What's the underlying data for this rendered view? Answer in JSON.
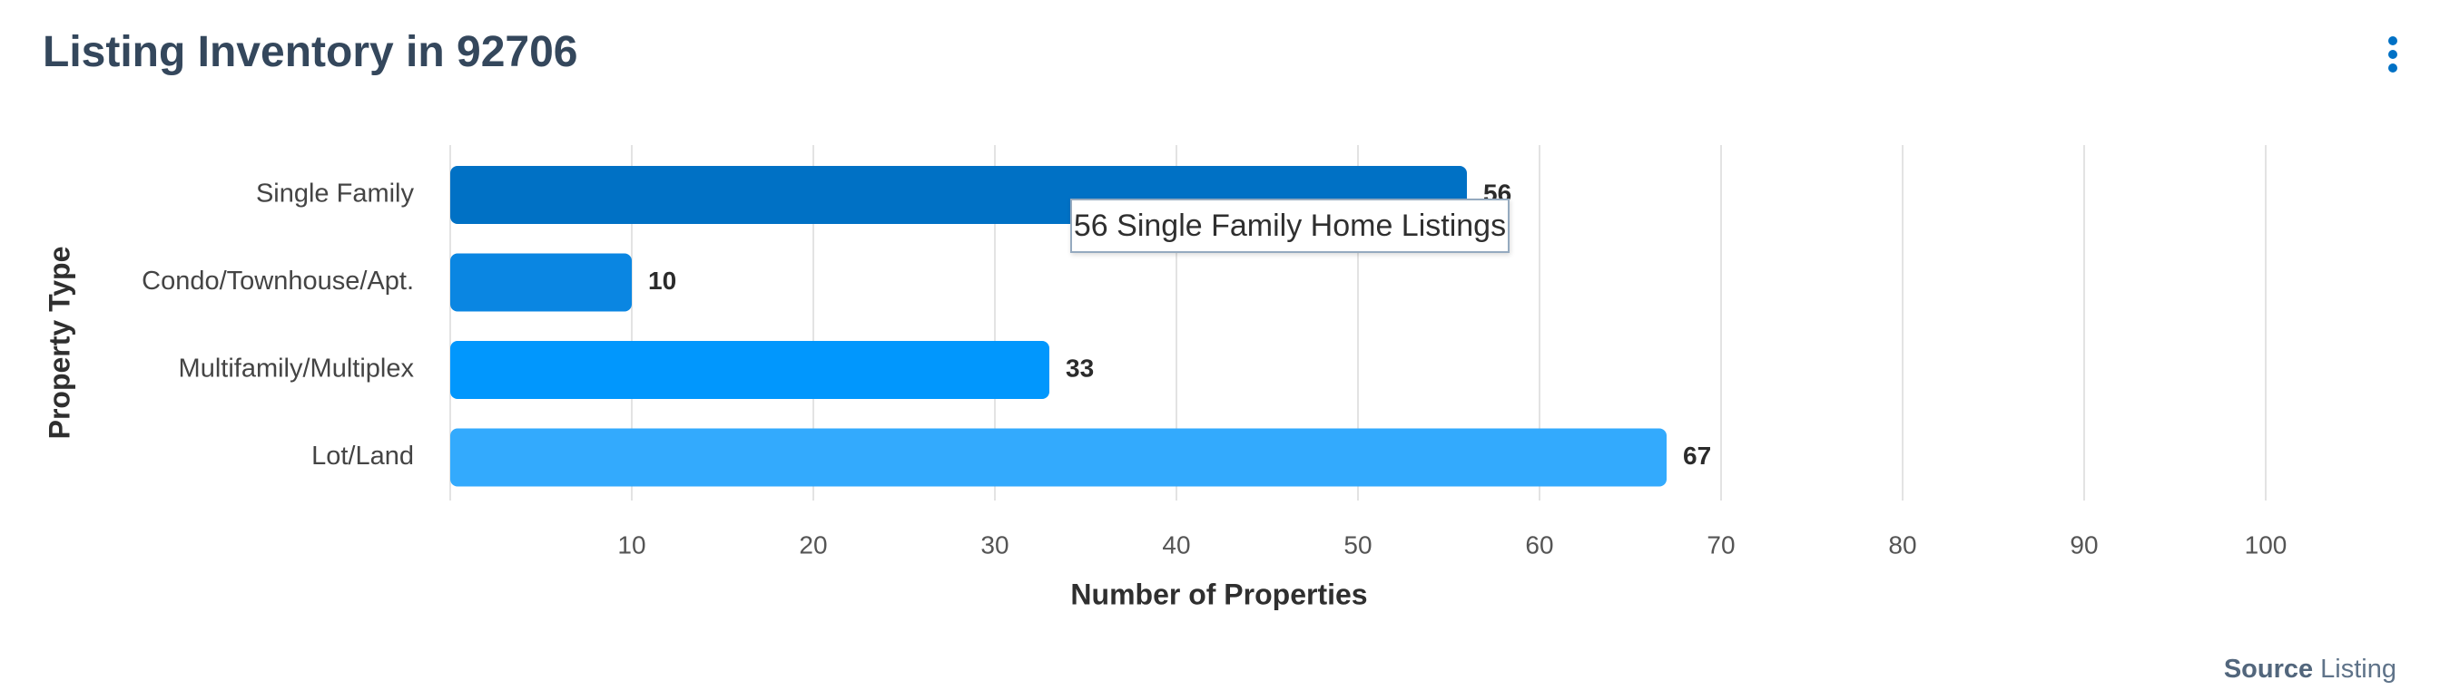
{
  "header": {
    "title": "Listing Inventory in 92706",
    "menu_icon": "more-vertical-icon"
  },
  "source": {
    "label": "Source",
    "value": "Listing"
  },
  "tooltip": {
    "text": "56 Single Family Home Listings"
  },
  "colors": {
    "title": "#34475c",
    "grid": "#e3e3e3",
    "bars": [
      "#0071c5",
      "#0a86e2",
      "#0197fd",
      "#33aafd"
    ]
  },
  "chart_data": {
    "type": "bar",
    "orientation": "horizontal",
    "categories": [
      "Single Family",
      "Condo/Townhouse/Apt.",
      "Multifamily/Multiplex",
      "Lot/Land"
    ],
    "values": [
      56,
      10,
      33,
      67
    ],
    "xlabel": "Number of Properties",
    "ylabel": "Property Type",
    "xlim": [
      0,
      100
    ],
    "xticks": [
      10,
      20,
      30,
      40,
      50,
      60,
      70,
      80,
      90,
      100
    ],
    "grid": true,
    "data_labels": true
  }
}
